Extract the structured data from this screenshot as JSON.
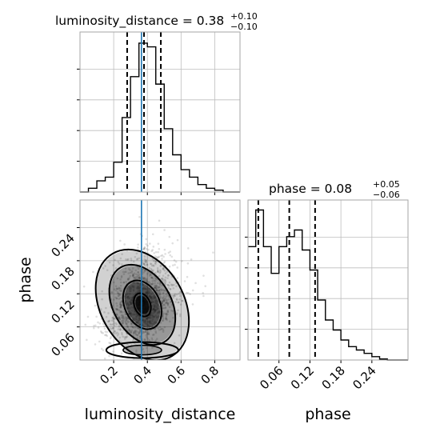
{
  "chart_data": [
    {
      "panel": "luminosity_distance-marginal",
      "type": "histogram",
      "title_param": "luminosity_distance",
      "title_eq": " = 0.38",
      "title_plus": "+0.10",
      "title_minus": "−0.10",
      "median": 0.38,
      "quantiles": [
        0.28,
        0.38,
        0.48
      ],
      "truth": 0.365,
      "xlim": [
        0.0,
        0.95
      ],
      "bin_edges": [
        0.0,
        0.05,
        0.1,
        0.15,
        0.2,
        0.25,
        0.3,
        0.35,
        0.4,
        0.45,
        0.5,
        0.55,
        0.6,
        0.65,
        0.7,
        0.75,
        0.8,
        0.85,
        0.9,
        0.95
      ],
      "counts": [
        0,
        1,
        3,
        4,
        8,
        20,
        31,
        40,
        39,
        29,
        17,
        10,
        6,
        4,
        2,
        1,
        0.5,
        0,
        0
      ],
      "ylim": [
        0,
        43
      ]
    },
    {
      "panel": "2d",
      "type": "scatter-contour",
      "xlabel": "luminosity_distance",
      "ylabel": "phase",
      "xlim": [
        0.0,
        0.95
      ],
      "ylim": [
        0.0,
        0.29
      ],
      "xticks": [
        "0.2",
        "0.4",
        "0.6",
        "0.8"
      ],
      "xtick_values": [
        0.2,
        0.4,
        0.6,
        0.8
      ],
      "yticks": [
        "0.06",
        "0.12",
        "0.18",
        "0.24"
      ],
      "ytick_values": [
        0.06,
        0.12,
        0.18,
        0.24
      ],
      "truth_x": 0.365,
      "density_center": [
        0.37,
        0.1
      ],
      "contour_levels": [
        "outer",
        "mid",
        "inner",
        "core"
      ]
    },
    {
      "panel": "phase-marginal",
      "type": "histogram",
      "title_param": "phase",
      "title_eq": " = 0.08",
      "title_plus": "+0.05",
      "title_minus": "−0.06",
      "xlabel": "phase",
      "median": 0.08,
      "quantiles": [
        0.02,
        0.08,
        0.13
      ],
      "xlim": [
        0.0,
        0.31
      ],
      "xticks": [
        "0.06",
        "0.12",
        "0.18",
        "0.24"
      ],
      "xtick_values": [
        0.06,
        0.12,
        0.18,
        0.24
      ],
      "bin_edges": [
        0.0,
        0.015,
        0.03,
        0.045,
        0.06,
        0.075,
        0.09,
        0.105,
        0.12,
        0.135,
        0.15,
        0.165,
        0.18,
        0.195,
        0.21,
        0.225,
        0.24,
        0.255,
        0.27,
        0.285,
        0.31
      ],
      "counts": [
        34,
        45,
        34,
        26,
        34,
        37,
        39,
        33,
        27,
        18,
        12,
        9,
        6,
        4,
        3,
        2,
        1,
        0.3,
        0,
        0
      ],
      "ylim": [
        0,
        48
      ]
    }
  ]
}
